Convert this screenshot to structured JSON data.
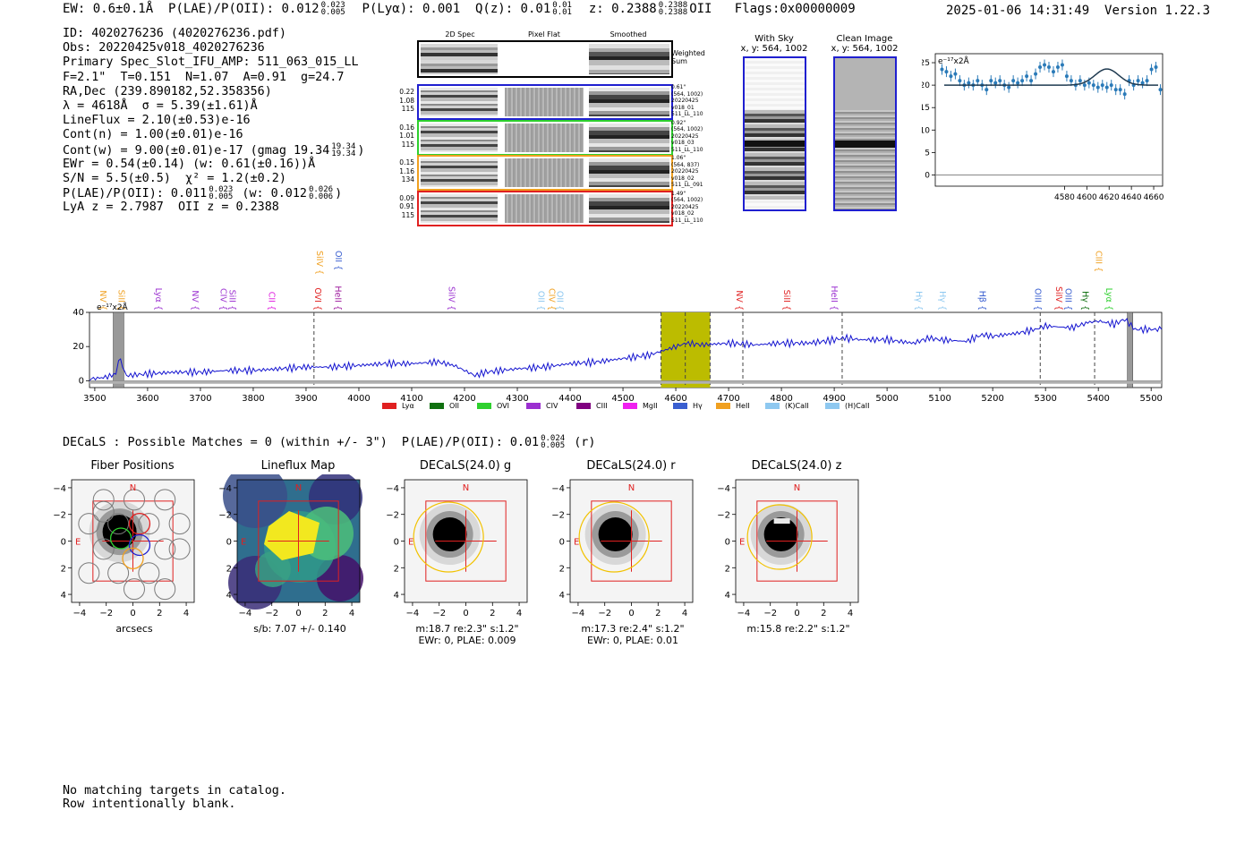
{
  "header": {
    "ew": "EW: 0.6±0.1Å",
    "plae_label": "P(LAE)/P(OII): 0.012",
    "plae_hi": "0.023",
    "plae_lo": "0.005",
    "plya": "P(Lyα): 0.001",
    "qz_label": "Q(z): 0.01",
    "qz_hi": "0.01",
    "qz_lo": "0.01",
    "z_label": "z: 0.2388",
    "z_hi": "0.2388",
    "z_lo": "0.2388",
    "z_line": "OII",
    "flags": "Flags:0x00000009",
    "datetime": "2025-01-06 14:31:49",
    "version": "Version 1.22.3"
  },
  "info": {
    "id": "ID: 4020276236 (4020276236.pdf)",
    "obs": "Obs: 20220425v018_4020276236",
    "primary": "Primary Spec_Slot_IFU_AMP: 511_063_015_LL",
    "fparams": "F=2.1\"  T=0.151  N=1.07  A=0.91  g=24.7",
    "radec": "RA,Dec (239.890182,52.358356)",
    "lambda": "λ = 4618Å  σ = 5.39(±1.61)Å",
    "lineflux": "LineFlux = 2.10(±0.53)e-16",
    "contn": "Cont(n) = 1.00(±0.01)e-16",
    "contw": "Cont(w) = 9.00(±0.01)e-17 (gmag 19.34",
    "contw_hi": "19.34",
    "contw_lo": "19.34",
    "contw_end": ")",
    "ewr": "EWr = 0.54(±0.14) (w: 0.61(±0.16))Å",
    "sn": "S/N = 5.5(±0.5)  χ² = 1.2(±0.2)",
    "plae": "P(LAE)/P(OII): 0.011",
    "plae_hi": "0.023",
    "plae_lo": "0.005",
    "plae_w": "(w: 0.012",
    "plae_w_hi": "0.026",
    "plae_w_lo": "0.006",
    "plae_w_end": ")",
    "lyaz": "LyA z = 2.7987  OII z = 0.2388"
  },
  "cutouts": {
    "headers": [
      "2D Spec",
      "Pixel Flat",
      "Smoothed"
    ],
    "weighted_sum": [
      "Weighted",
      "Sum"
    ],
    "rows": [
      {
        "left": [
          "0.22",
          "1.08",
          "115"
        ],
        "right": [
          "0.61\"",
          "(564, 1002)",
          "20220425",
          "v018_01",
          "511_LL_110"
        ],
        "color": "#1f1fd0"
      },
      {
        "left": [
          "0.16",
          "1.01",
          "115"
        ],
        "right": [
          "0.92\"",
          "(564, 1002)",
          "20220425",
          "v018_03",
          "511_LL_110"
        ],
        "color": "#2ed02e"
      },
      {
        "left": [
          "0.15",
          "1.16",
          "134"
        ],
        "right": [
          "1.06\"",
          "(564, 837)",
          "20220425",
          "v018_02",
          "511_LL_091"
        ],
        "color": "#f0a020"
      },
      {
        "left": [
          "0.09",
          "0.91",
          "115"
        ],
        "right": [
          "1.49\"",
          "(564, 1002)",
          "20220425",
          "v018_02",
          "511_LL_110"
        ],
        "color": "#e02020"
      }
    ],
    "with_sky_title": [
      "With Sky",
      "x, y: 564, 1002"
    ],
    "clean_title": [
      "Clean Image",
      "x, y: 564, 1002"
    ]
  },
  "zoom_chart": {
    "unit_label": "e⁻¹⁷x2Å",
    "chart_data": {
      "type": "scatter",
      "title": "",
      "xlim": [
        4464,
        4668
      ],
      "ylim": [
        -2.5,
        27
      ],
      "xticks": [
        4580,
        4600,
        4620,
        4640,
        4660
      ],
      "yticks": [
        0,
        5,
        10,
        15,
        20,
        25
      ],
      "x": [
        4470,
        4474,
        4478,
        4482,
        4486,
        4490,
        4494,
        4498,
        4502,
        4506,
        4510,
        4514,
        4518,
        4522,
        4526,
        4530,
        4534,
        4538,
        4542,
        4546,
        4550,
        4554,
        4558,
        4562,
        4566,
        4570,
        4574,
        4578,
        4582,
        4586,
        4590,
        4594,
        4598,
        4602,
        4606,
        4610,
        4614,
        4618,
        4622,
        4626,
        4630,
        4634,
        4638,
        4642,
        4646,
        4650,
        4654,
        4658,
        4662,
        4666
      ],
      "y": [
        23.5,
        23,
        22,
        22.5,
        21,
        20,
        20.5,
        20,
        21,
        20,
        19,
        21,
        20.5,
        21,
        20,
        19.5,
        21,
        20.5,
        21,
        22,
        21,
        22.5,
        24,
        24.5,
        24,
        23,
        24,
        24.5,
        22,
        21,
        20,
        21,
        20,
        20.5,
        20,
        19.5,
        20,
        19.5,
        20,
        19,
        19,
        18,
        21,
        20,
        21,
        20.5,
        21,
        23.5,
        24,
        19
      ],
      "fit": {
        "continuum": 20.0,
        "center": 4618,
        "sigma": 5.39,
        "amplitude": 3.6,
        "x_start": 4472,
        "x_end": 4664
      }
    }
  },
  "spectrum": {
    "unit_label": "e⁻¹⁷x2Å",
    "line_labels_top": [
      {
        "name": "SiIV",
        "x": 3915,
        "color": "#f0a020"
      },
      {
        "name": "OII",
        "x": 3951,
        "color": "#3a5fd0"
      },
      {
        "name": "CIII",
        "x": 5390,
        "color": "#f0a020"
      }
    ],
    "line_labels": [
      {
        "name": "NV",
        "x": 3505,
        "color": "#f0a020"
      },
      {
        "name": "SiII",
        "x": 3540,
        "color": "#f0a020"
      },
      {
        "name": "Lyα",
        "x": 3610,
        "color": "#9b30d0"
      },
      {
        "name": "NV",
        "x": 3680,
        "color": "#9b30d0"
      },
      {
        "name": "CIV",
        "x": 3733,
        "color": "#9b30d0"
      },
      {
        "name": "SiII",
        "x": 3750,
        "color": "#9b30d0"
      },
      {
        "name": "CII",
        "x": 3825,
        "color": "#e020e0"
      },
      {
        "name": "OVI",
        "x": 3912,
        "color": "#e02020"
      },
      {
        "name": "HeII",
        "x": 3950,
        "color": "#a020a0"
      },
      {
        "name": "SiIV",
        "x": 4165,
        "color": "#9b30d0"
      },
      {
        "name": "OII",
        "x": 4335,
        "color": "#8ec8f0"
      },
      {
        "name": "CIV",
        "x": 4355,
        "color": "#f0a020"
      },
      {
        "name": "OII",
        "x": 4370,
        "color": "#8ec8f0"
      },
      {
        "name": "NV",
        "x": 4710,
        "color": "#e02020"
      },
      {
        "name": "SiII",
        "x": 4800,
        "color": "#e02020"
      },
      {
        "name": "HeII",
        "x": 4890,
        "color": "#9b30d0"
      },
      {
        "name": "Hγ",
        "x": 5050,
        "color": "#8ec8f0"
      },
      {
        "name": "Hγ",
        "x": 5095,
        "color": "#8ec8f0"
      },
      {
        "name": "Hβ",
        "x": 5170,
        "color": "#3a5fd0"
      },
      {
        "name": "OIII",
        "x": 5275,
        "color": "#3a5fd0"
      },
      {
        "name": "SiIV",
        "x": 5315,
        "color": "#e02020"
      },
      {
        "name": "OIII",
        "x": 5333,
        "color": "#3a5fd0"
      },
      {
        "name": "Hγ",
        "x": 5365,
        "color": "#107010"
      },
      {
        "name": "Lyα",
        "x": 5410,
        "color": "#2ed02e"
      }
    ],
    "legend": [
      {
        "name": "Lyα",
        "color": "#e02020"
      },
      {
        "name": "OII",
        "color": "#107010"
      },
      {
        "name": "OVI",
        "color": "#2ed02e"
      },
      {
        "name": "CIV",
        "color": "#9b30d0"
      },
      {
        "name": "CIII",
        "color": "#800080"
      },
      {
        "name": "MgII",
        "color": "#f020f0"
      },
      {
        "name": "Hγ",
        "color": "#3a5fd0"
      },
      {
        "name": "HeII",
        "color": "#f0a020"
      },
      {
        "name": "(K)CaII",
        "color": "#8ec8f0"
      },
      {
        "name": "(H)CaII",
        "color": "#8ec8f0"
      }
    ],
    "chart_data": {
      "type": "line",
      "xlim": [
        3490,
        5520
      ],
      "ylim": [
        -4,
        40
      ],
      "xticks": [
        3500,
        3600,
        3700,
        3800,
        3900,
        4000,
        4100,
        4200,
        4300,
        4400,
        4500,
        4600,
        4700,
        4800,
        4900,
        5000,
        5100,
        5200,
        5300,
        5400,
        5500
      ],
      "yticks": [
        0,
        20,
        40
      ],
      "highlight_band": [
        4572,
        4665
      ],
      "highlight_center": 4618,
      "dashed_lines": [
        3915,
        4572,
        4618,
        4665,
        4727,
        4915,
        5290,
        5393
      ],
      "masked_regions": [
        [
          3535,
          3555
        ],
        [
          5455,
          5465
        ]
      ],
      "x": [
        3490,
        3520,
        3540,
        3545,
        3560,
        3600,
        3650,
        3700,
        3750,
        3800,
        3850,
        3900,
        3950,
        4000,
        4050,
        4100,
        4150,
        4180,
        4200,
        4220,
        4240,
        4300,
        4350,
        4400,
        4450,
        4500,
        4550,
        4600,
        4620,
        4650,
        4700,
        4750,
        4800,
        4850,
        4880,
        4900,
        4920,
        4950,
        5000,
        5050,
        5080,
        5100,
        5150,
        5180,
        5200,
        5250,
        5280,
        5300,
        5350,
        5380,
        5400,
        5430,
        5450,
        5470,
        5500,
        5520
      ],
      "y": [
        1,
        2,
        4,
        14,
        3,
        4,
        5,
        5,
        6,
        6,
        7,
        8,
        8,
        9,
        10,
        10,
        11,
        9,
        6,
        3,
        5,
        7,
        8,
        10,
        11,
        13,
        15,
        20,
        22,
        21,
        22,
        21,
        22,
        22,
        23,
        24,
        25,
        24,
        24,
        22,
        25,
        24,
        23,
        27,
        26,
        28,
        30,
        32,
        31,
        34,
        35,
        33,
        36,
        30,
        30,
        30
      ]
    }
  },
  "decals_line": {
    "text": "DECaLS : Possible Matches = 0 (within +/- 3\")  P(LAE)/P(OII): 0.01",
    "hi": "0.024",
    "lo": "0.005",
    "band": "(r)"
  },
  "stamps": [
    {
      "title": "Fiber Positions",
      "labels": [
        "arcsecs"
      ]
    },
    {
      "title": "Lineflux Map",
      "labels": [
        "s/b: 7.07 +/- 0.140"
      ]
    },
    {
      "title": "DECaLS(24.0) g",
      "labels": [
        "m:18.7  re:2.3\"  s:1.2\"",
        "EWr: 0, PLAE: 0.009"
      ]
    },
    {
      "title": "DECaLS(24.0) r",
      "labels": [
        "m:17.3  re:2.4\"  s:1.2\"",
        "EWr: 0, PLAE: 0.01"
      ]
    },
    {
      "title": "DECaLS(24.0) z",
      "labels": [
        "m:15.8  re:2.2\"  s:1.2\""
      ]
    }
  ],
  "stamp_axes": {
    "ticks": [
      "−4",
      "−2",
      "0",
      "2",
      "4"
    ],
    "north": "N",
    "east": "E"
  },
  "footer": {
    "line1": "No matching targets in catalog.",
    "line2": "Row intentionally blank."
  }
}
